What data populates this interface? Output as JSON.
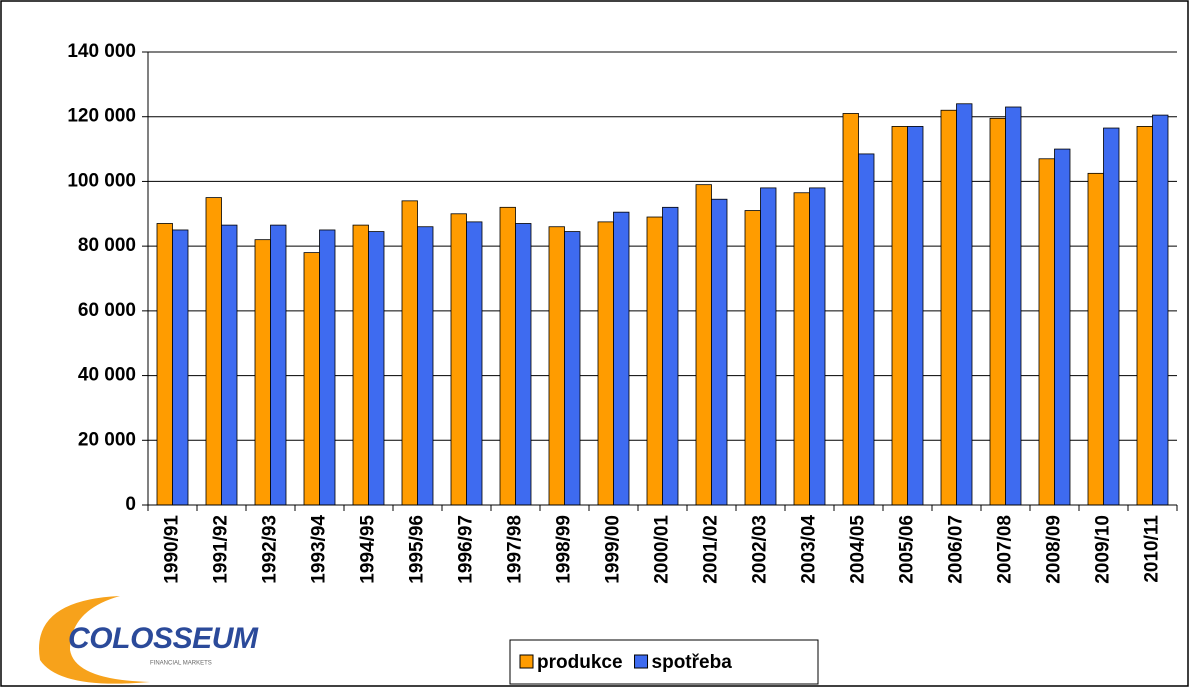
{
  "chart_data": {
    "type": "bar",
    "categories": [
      "1990/91",
      "1991/92",
      "1992/93",
      "1993/94",
      "1994/95",
      "1995/96",
      "1996/97",
      "1997/98",
      "1998/99",
      "1999/00",
      "2000/01",
      "2001/02",
      "2002/03",
      "2003/04",
      "2004/05",
      "2005/06",
      "2006/07",
      "2007/08",
      "2008/09",
      "2009/10",
      "2010/11"
    ],
    "series": [
      {
        "name": "produkce",
        "color": "#ff9c00",
        "values": [
          87000,
          95000,
          82000,
          78000,
          86500,
          94000,
          90000,
          92000,
          86000,
          87500,
          89000,
          99000,
          91000,
          96500,
          121000,
          117000,
          122000,
          119500,
          107000,
          102500,
          117000
        ]
      },
      {
        "name": "spotřeba",
        "color": "#3e6bf0",
        "values": [
          85000,
          86500,
          86500,
          85000,
          84500,
          86000,
          87500,
          87000,
          84500,
          90500,
          92000,
          94500,
          98000,
          98000,
          108500,
          117000,
          124000,
          123000,
          110000,
          116500,
          120500
        ]
      }
    ],
    "ylim": [
      0,
      140000
    ],
    "yticks": [
      0,
      {
        "value": 20000,
        "label": "20 000"
      },
      {
        "value": 40000,
        "label": "40 000"
      },
      {
        "value": 60000,
        "label": "60 000"
      },
      {
        "value": 80000,
        "label": "80 000"
      },
      {
        "value": 100000,
        "label": "100 000"
      },
      {
        "value": 120000,
        "label": "120 000"
      },
      {
        "value": 140000,
        "label": "140 000"
      }
    ],
    "grid": true,
    "legend": "bottom"
  },
  "logo": {
    "name": "COLOSSEUM",
    "tagline": "FINANCIAL MARKETS"
  }
}
